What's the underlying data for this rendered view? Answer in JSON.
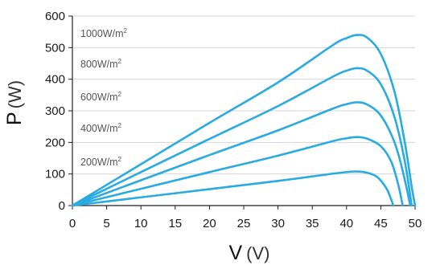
{
  "chart_data": {
    "type": "line",
    "title": "",
    "xlabel": {
      "symbol": "V",
      "unit": "(V)"
    },
    "ylabel": {
      "symbol": "P",
      "unit": "(W)"
    },
    "xlim": [
      0,
      50
    ],
    "ylim": [
      0,
      600
    ],
    "x_ticks": [
      "0",
      "5",
      "10",
      "15",
      "20",
      "25",
      "30",
      "35",
      "40",
      "45",
      "50"
    ],
    "y_ticks": [
      "0",
      "100",
      "200",
      "300",
      "400",
      "500",
      "600"
    ],
    "grid": {
      "horizontal": true,
      "vertical": false
    },
    "legend": "none",
    "series_color": "#29abe2",
    "series": [
      {
        "name": "1000W/m²",
        "label_prefix": "1000W/m",
        "label_sup": "2",
        "points": [
          [
            0,
            0
          ],
          [
            10,
            131
          ],
          [
            20,
            262
          ],
          [
            30,
            390
          ],
          [
            38,
            508
          ],
          [
            40,
            530
          ],
          [
            41.5,
            540
          ],
          [
            43,
            532
          ],
          [
            45,
            480
          ],
          [
            47,
            360
          ],
          [
            48.5,
            200
          ],
          [
            49.5,
            60
          ],
          [
            50,
            0
          ]
        ]
      },
      {
        "name": "800W/m²",
        "label_prefix": "800W/m",
        "label_sup": "2",
        "points": [
          [
            0,
            0
          ],
          [
            10,
            106
          ],
          [
            20,
            211
          ],
          [
            30,
            315
          ],
          [
            38,
            408
          ],
          [
            40,
            427
          ],
          [
            41.5,
            435
          ],
          [
            43,
            427
          ],
          [
            45,
            384
          ],
          [
            47,
            280
          ],
          [
            48.5,
            140
          ],
          [
            49.5,
            0
          ]
        ]
      },
      {
        "name": "600W/m²",
        "label_prefix": "600W/m",
        "label_sup": "2",
        "points": [
          [
            0,
            0
          ],
          [
            10,
            80
          ],
          [
            20,
            160
          ],
          [
            30,
            238
          ],
          [
            38,
            307
          ],
          [
            40,
            321
          ],
          [
            41.5,
            327
          ],
          [
            43,
            320
          ],
          [
            45,
            285
          ],
          [
            47,
            200
          ],
          [
            48.3,
            100
          ],
          [
            49.3,
            0
          ]
        ]
      },
      {
        "name": "400W/m²",
        "label_prefix": "400W/m",
        "label_sup": "2",
        "points": [
          [
            0,
            0
          ],
          [
            10,
            53
          ],
          [
            20,
            106
          ],
          [
            30,
            158
          ],
          [
            38,
            204
          ],
          [
            40,
            213
          ],
          [
            41.5,
            217
          ],
          [
            43,
            212
          ],
          [
            45,
            188
          ],
          [
            46.5,
            140
          ],
          [
            47.5,
            70
          ],
          [
            48.2,
            0
          ]
        ]
      },
      {
        "name": "200W/m²",
        "label_prefix": "200W/m",
        "label_sup": "2",
        "points": [
          [
            0,
            0
          ],
          [
            10,
            26
          ],
          [
            20,
            52
          ],
          [
            30,
            78
          ],
          [
            38,
            101
          ],
          [
            40,
            106
          ],
          [
            41.5,
            108
          ],
          [
            43,
            104
          ],
          [
            44.5,
            90
          ],
          [
            45.8,
            55
          ],
          [
            46.5,
            20
          ],
          [
            46.8,
            0
          ]
        ]
      }
    ]
  }
}
